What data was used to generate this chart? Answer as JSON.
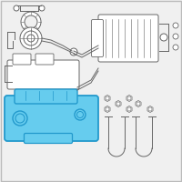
{
  "background_color": "#f0f0f0",
  "border_color": "#bbbbbb",
  "line_color": "#666666",
  "highlight_stroke": "#2299cc",
  "highlight_fill": "#66ccee",
  "figsize": [
    2.0,
    2.0
  ],
  "dpi": 100
}
